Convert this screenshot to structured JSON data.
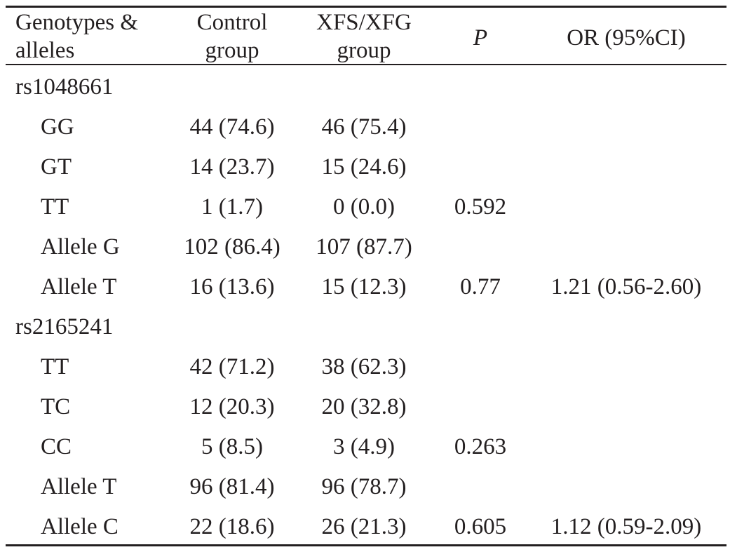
{
  "header": {
    "genotypes_line1": "Genotypes &",
    "genotypes_line2": "alleles",
    "control_line1": "Control",
    "control_line2": "group",
    "xfs_line1": "XFS/XFG",
    "xfs_line2": "group",
    "p": "P",
    "or": "OR (95%CI)"
  },
  "rows": [
    {
      "label": "rs1048661",
      "control": "",
      "xfs": "",
      "p": "",
      "or": ""
    },
    {
      "label": "GG",
      "control": "44 (74.6)",
      "xfs": "46 (75.4)",
      "p": "",
      "or": ""
    },
    {
      "label": "GT",
      "control": "14 (23.7)",
      "xfs": "15 (24.6)",
      "p": "",
      "or": ""
    },
    {
      "label": "TT",
      "control": "1 (1.7)",
      "xfs": "0 (0.0)",
      "p": "0.592",
      "or": ""
    },
    {
      "label": "Allele G",
      "control": "102 (86.4)",
      "xfs": "107 (87.7)",
      "p": "",
      "or": ""
    },
    {
      "label": "Allele T",
      "control": "16 (13.6)",
      "xfs": "15 (12.3)",
      "p": "0.77",
      "or": "1.21 (0.56-2.60)"
    },
    {
      "label": "rs2165241",
      "control": "",
      "xfs": "",
      "p": "",
      "or": ""
    },
    {
      "label": "TT",
      "control": "42 (71.2)",
      "xfs": "38 (62.3)",
      "p": "",
      "or": ""
    },
    {
      "label": "TC",
      "control": "12 (20.3)",
      "xfs": "20 (32.8)",
      "p": "",
      "or": ""
    },
    {
      "label": "CC",
      "control": "5 (8.5)",
      "xfs": "3 (4.9)",
      "p": "0.263",
      "or": ""
    },
    {
      "label": "Allele T",
      "control": "96 (81.4)",
      "xfs": "96 (78.7)",
      "p": "",
      "or": ""
    },
    {
      "label": "Allele C",
      "control": "22 (18.6)",
      "xfs": "26 (21.3)",
      "p": "0.605",
      "or": "1.12 (0.59-2.09)"
    }
  ]
}
